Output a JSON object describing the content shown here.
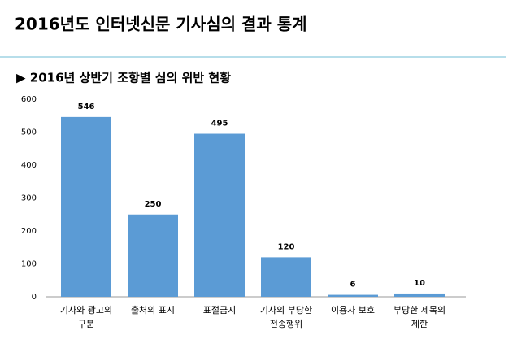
{
  "chart_data": {
    "type": "bar",
    "title": "2016년도 인터넷신문 기사심의 결과 통계",
    "subtitle": "▶ 2016년 상반기 조항별 심의 위반 현황",
    "categories": [
      "기사와 광고의 구분",
      "출처의 표시",
      "표절금지",
      "기사의 부당한 전송행위",
      "이용자 보호",
      "부당한 제목의 제한"
    ],
    "values": [
      546,
      250,
      495,
      120,
      6,
      10
    ],
    "color": "#5b9bd5",
    "ylim": [
      0,
      600
    ],
    "yticks": [
      0,
      100,
      200,
      300,
      400,
      500,
      600
    ],
    "grid": false
  }
}
